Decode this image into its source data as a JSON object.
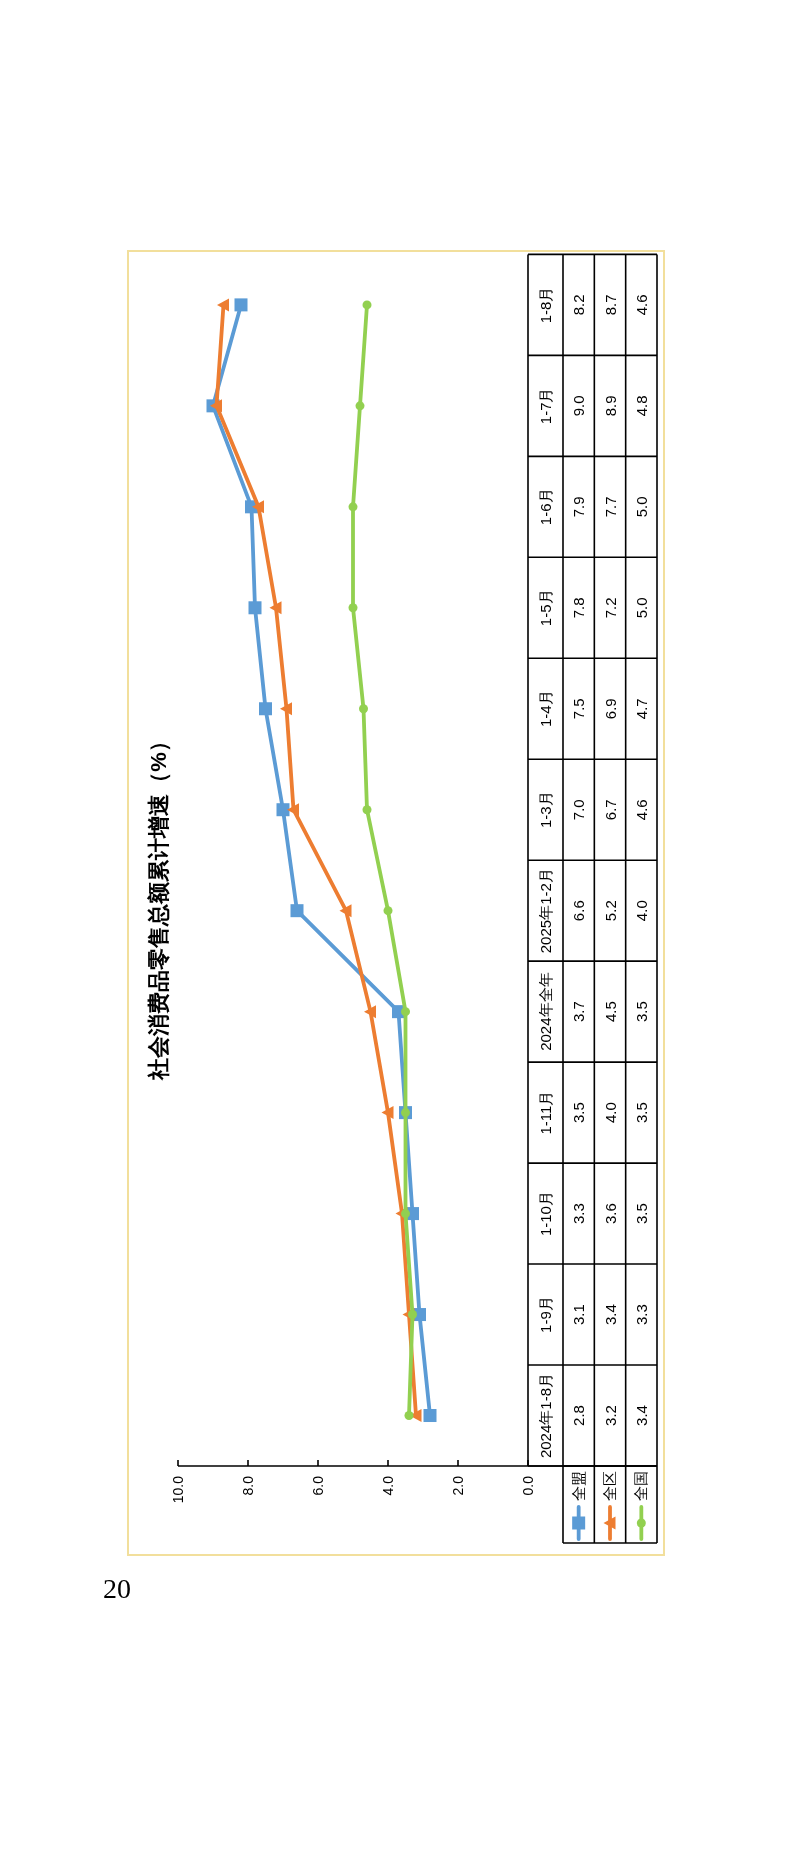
{
  "chart_data": {
    "type": "line",
    "orientation": "horizontal",
    "title": "社会消费品零售总额累计增速（%）",
    "categories": [
      "1-8月",
      "1-7月",
      "1-6月",
      "1-5月",
      "1-4月",
      "1-3月",
      "2025年1-2月",
      "2024年全年",
      "1-11月",
      "1-10月",
      "1-9月",
      "2024年1-8月"
    ],
    "series": [
      {
        "name": "全盟",
        "color": "#5b9bd5",
        "marker": "square",
        "values": [
          8.2,
          9.0,
          7.9,
          7.8,
          7.5,
          7.0,
          6.6,
          3.7,
          3.5,
          3.3,
          3.1,
          2.8
        ],
        "value_labels": [
          "8.2",
          "9.0",
          "7.9",
          "7.8",
          "7.5",
          "7.0",
          "6.6",
          "3.7",
          "3.5",
          "3.3",
          "3.1",
          "2.8"
        ]
      },
      {
        "name": "全区",
        "color": "#ed7d31",
        "marker": "triangle",
        "values": [
          8.7,
          8.9,
          7.7,
          7.2,
          6.9,
          6.7,
          5.2,
          4.5,
          4.0,
          3.6,
          3.4,
          3.2
        ],
        "value_labels": [
          "8.7",
          "8.9",
          "7.7",
          "7.2",
          "6.9",
          "6.7",
          "5.2",
          "4.5",
          "4.0",
          "3.6",
          "3.4",
          "3.2"
        ]
      },
      {
        "name": "全国",
        "color": "#92d050",
        "marker": "circle",
        "values": [
          4.6,
          4.8,
          5.0,
          5.0,
          4.7,
          4.6,
          4.0,
          3.5,
          3.5,
          3.5,
          3.3,
          3.4
        ],
        "value_labels": [
          "4.6",
          "4.8",
          "5.0",
          "5.0",
          "4.7",
          "4.6",
          "4.0",
          "3.5",
          "3.5",
          "3.5",
          "3.3",
          "3.4"
        ]
      }
    ],
    "xlim": [
      10,
      0
    ],
    "xticks": [
      {
        "value": 10,
        "label": "10.0"
      },
      {
        "value": 8,
        "label": "8.0"
      },
      {
        "value": 6,
        "label": "6.0"
      },
      {
        "value": 4,
        "label": "4.0"
      },
      {
        "value": 2,
        "label": "2.0"
      },
      {
        "value": 0,
        "label": "0.0"
      }
    ],
    "legend": "bottom right",
    "line_style": "solid",
    "annotations": [
      "20"
    ]
  }
}
